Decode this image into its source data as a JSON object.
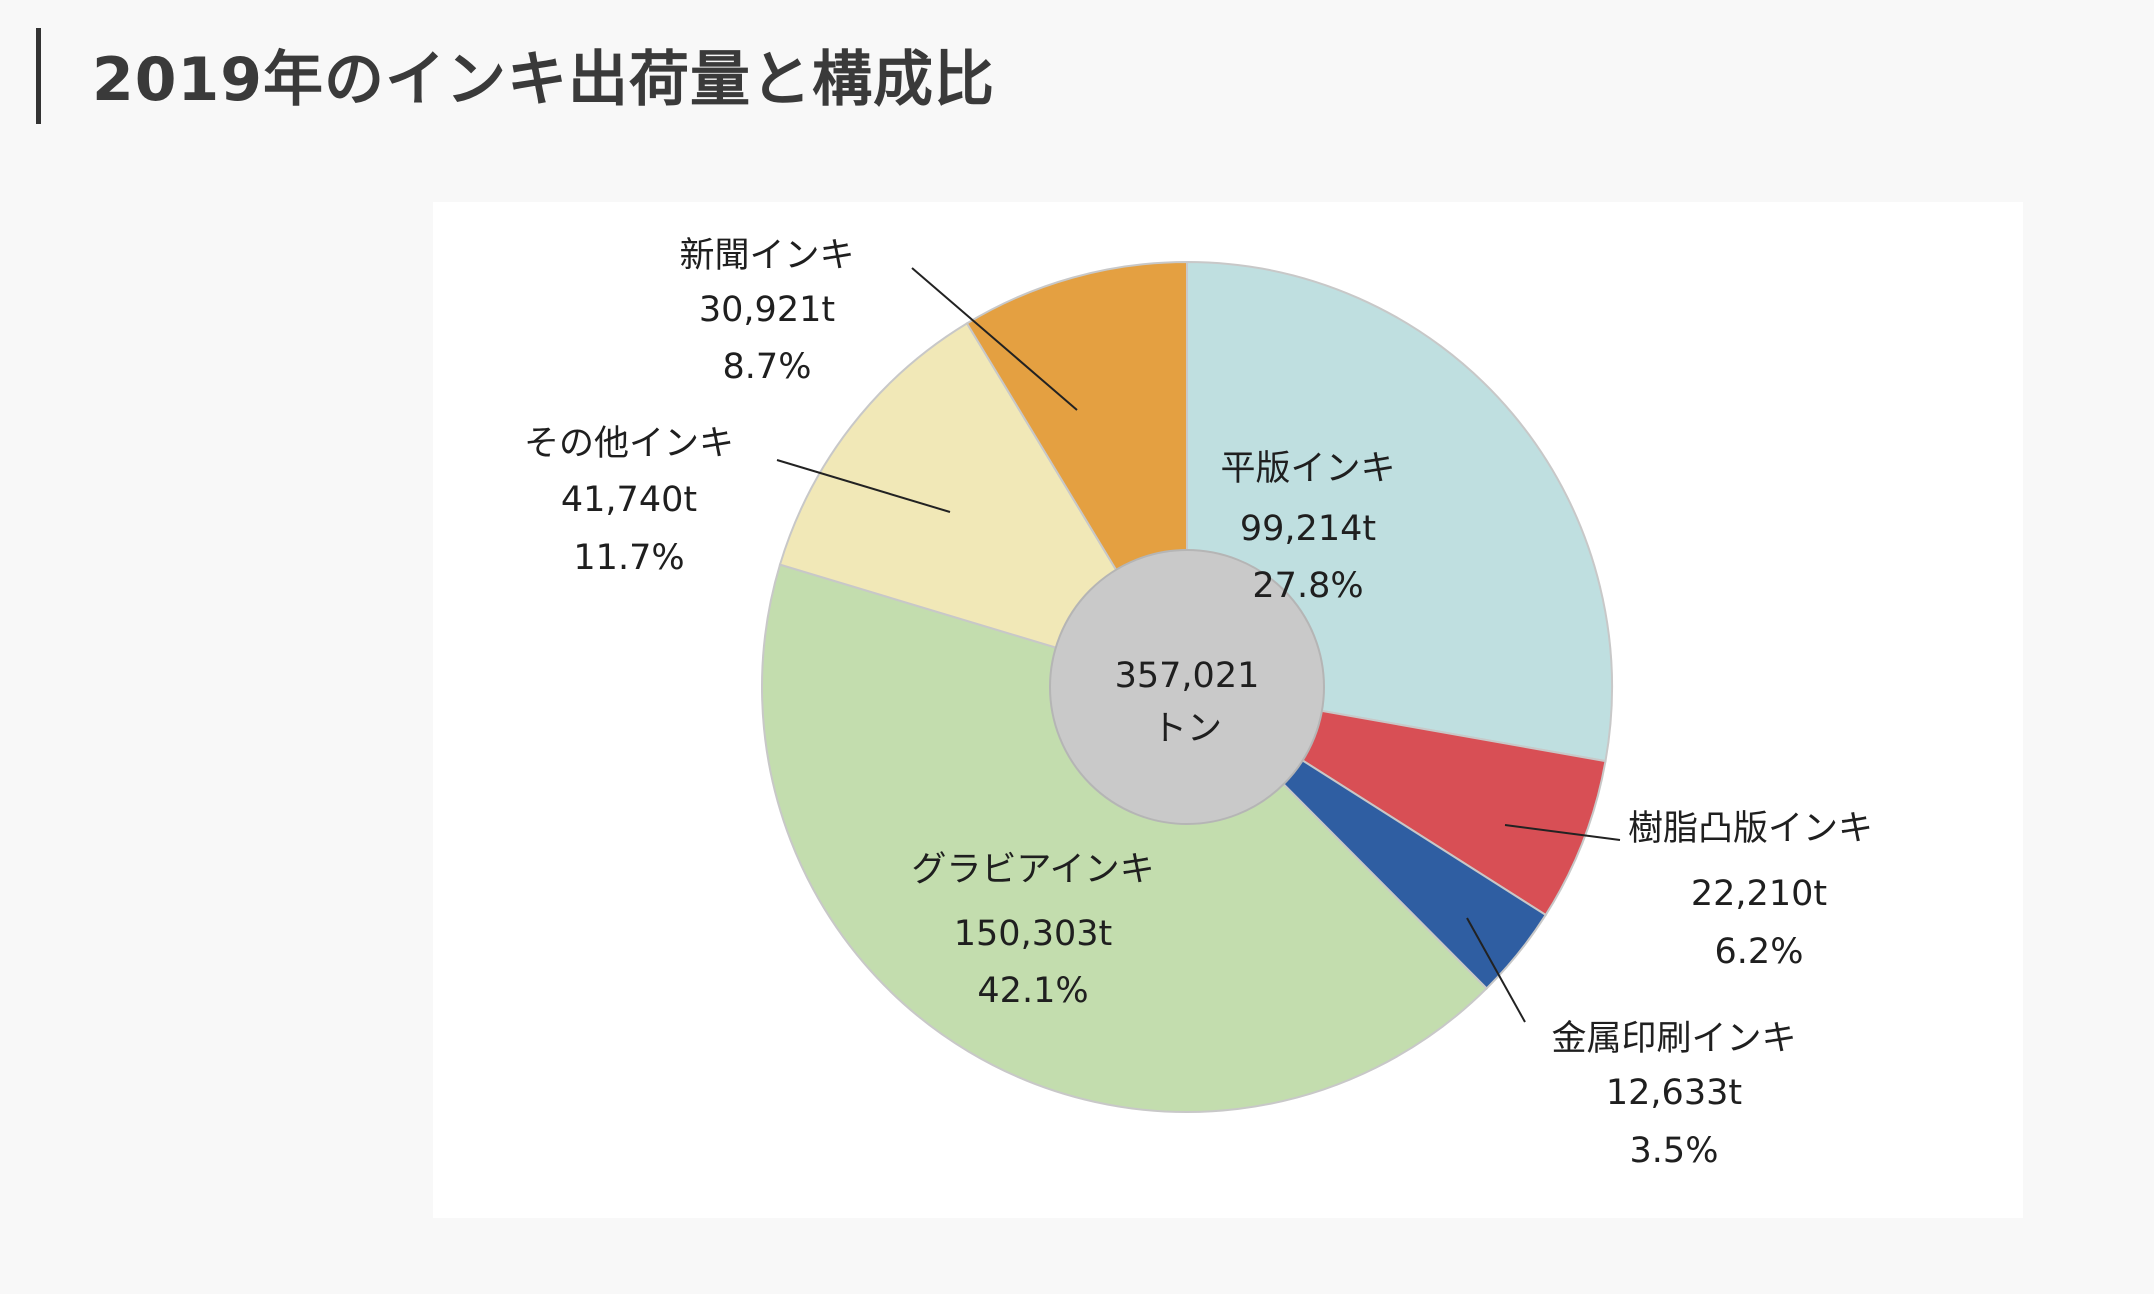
{
  "header": {
    "title": "2019年のインキ出荷量と構成比"
  },
  "chart_data": {
    "type": "pie",
    "style": "donut",
    "unit": "t",
    "center": {
      "value": "357,021",
      "unit": "トン"
    },
    "slices": [
      {
        "name": "平版インキ",
        "value": 99214,
        "value_label": "99,214t",
        "percent_label": "27.8%",
        "color": "#bfdfe0"
      },
      {
        "name": "樹脂凸版インキ",
        "value": 22210,
        "value_label": "22,210t",
        "percent_label": "6.2%",
        "color": "#d84f55"
      },
      {
        "name": "金属印刷インキ",
        "value": 12633,
        "value_label": "12,633t",
        "percent_label": "3.5%",
        "color": "#2f5ea2"
      },
      {
        "name": "グラビアインキ",
        "value": 150303,
        "value_label": "150,303t",
        "percent_label": "42.1%",
        "color": "#c3ddae"
      },
      {
        "name": "その他インキ",
        "value": 41740,
        "value_label": "41,740t",
        "percent_label": "11.7%",
        "color": "#f1e8b7"
      },
      {
        "name": "新聞インキ",
        "value": 30921,
        "value_label": "30,921t",
        "percent_label": "8.7%",
        "color": "#e4a041"
      }
    ]
  }
}
